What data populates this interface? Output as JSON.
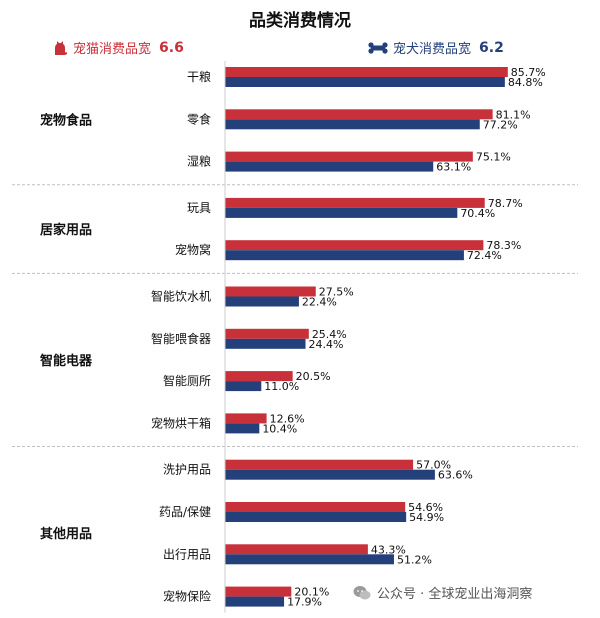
{
  "title": "品类消费情况",
  "legend": {
    "cat": {
      "label": "宠猫消费品宽",
      "value": "6.6",
      "color": "#c8303a"
    },
    "dog": {
      "label": "宠犬消费品宽",
      "value": "6.2",
      "color": "#24407a"
    }
  },
  "chart_data": {
    "type": "bar",
    "orientation": "horizontal",
    "title": "品类消费情况",
    "unit": "%",
    "xlim": [
      0,
      100
    ],
    "series": [
      {
        "name": "宠猫消费品宽",
        "color": "#c8303a"
      },
      {
        "name": "宠犬消费品宽",
        "color": "#24407a"
      }
    ],
    "groups": [
      {
        "name": "宠物食品",
        "items": [
          {
            "label": "干粮",
            "cat": 85.7,
            "dog": 84.8
          },
          {
            "label": "零食",
            "cat": 81.1,
            "dog": 77.2
          },
          {
            "label": "湿粮",
            "cat": 75.1,
            "dog": 63.1
          }
        ]
      },
      {
        "name": "居家用品",
        "items": [
          {
            "label": "玩具",
            "cat": 78.7,
            "dog": 70.4
          },
          {
            "label": "宠物窝",
            "cat": 78.3,
            "dog": 72.4
          }
        ]
      },
      {
        "name": "智能电器",
        "items": [
          {
            "label": "智能饮水机",
            "cat": 27.5,
            "dog": 22.4
          },
          {
            "label": "智能喂食器",
            "cat": 25.4,
            "dog": 24.4
          },
          {
            "label": "智能厕所",
            "cat": 20.5,
            "dog": 11.0
          },
          {
            "label": "宠物烘干箱",
            "cat": 12.6,
            "dog": 10.4
          }
        ]
      },
      {
        "name": "其他用品",
        "items": [
          {
            "label": "洗护用品",
            "cat": 57.0,
            "dog": 63.6
          },
          {
            "label": "药品/保健",
            "cat": 54.6,
            "dog": 54.9
          },
          {
            "label": "出行用品",
            "cat": 43.3,
            "dog": 51.2
          },
          {
            "label": "宠物保险",
            "cat": 20.1,
            "dog": 17.9
          }
        ]
      }
    ]
  },
  "watermark": {
    "text": "公众号 · 全球宠业出海洞察",
    "icon": "wechat-icon"
  }
}
